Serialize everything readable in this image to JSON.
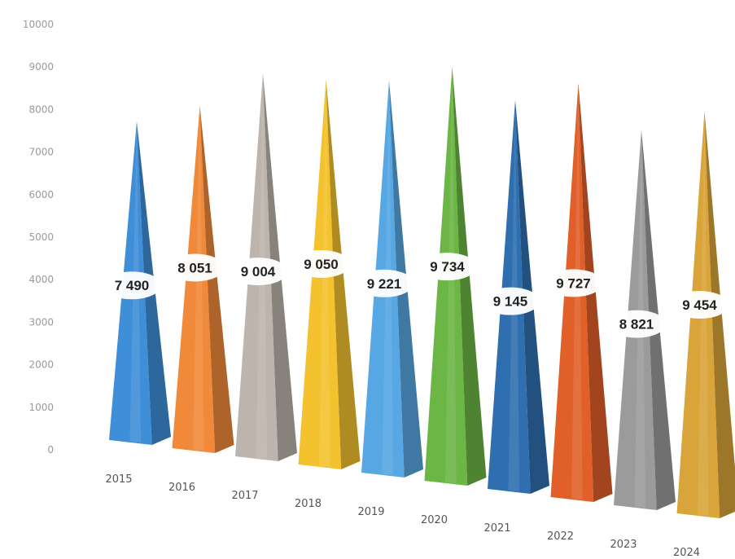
{
  "chart_data": {
    "type": "bar",
    "title": "",
    "xlabel": "",
    "ylabel": "",
    "ylim": [
      0,
      10000
    ],
    "yticks": [
      0,
      1000,
      2000,
      3000,
      4000,
      5000,
      6000,
      7000,
      8000,
      9000,
      10000
    ],
    "categories": [
      "2015",
      "2016",
      "2017",
      "2018",
      "2019",
      "2020",
      "2021",
      "2022",
      "2023",
      "2024"
    ],
    "values": [
      7490,
      8051,
      9004,
      9050,
      9221,
      9734,
      9145,
      9727,
      8821,
      9454
    ],
    "value_labels": [
      "7 490",
      "8 051",
      "9 004",
      "9 050",
      "9 221",
      "9 734",
      "9 145",
      "9 727",
      "8 821",
      "9 454"
    ],
    "colors": [
      "#3f8fd8",
      "#f08a3a",
      "#bdb4ad",
      "#f3c22e",
      "#56a7e3",
      "#6cb646",
      "#2f6fb0",
      "#e1602a",
      "#9b9b9b",
      "#d9a53a"
    ],
    "bar_shape": "3d-pyramid",
    "grid": false,
    "legend": "none"
  }
}
